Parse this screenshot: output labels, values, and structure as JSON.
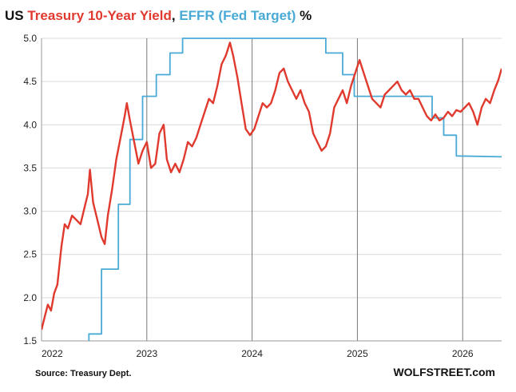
{
  "title": {
    "us": "US",
    "treasury": "Treasury 10-Year Yield",
    "sep": ", ",
    "effr": "EFFR (Fed Target)",
    "pct": "%"
  },
  "source": "Source: Treasury Dept.",
  "brand": "WOLFSTREET.com",
  "colors": {
    "treasury": "#e03a2f",
    "effr": "#4aaad6",
    "grid": "#d9d9d9",
    "year_line": "#7a7a7a"
  },
  "chart_data": {
    "type": "line",
    "ylim": [
      1.5,
      5.0
    ],
    "xlim": [
      2022.0,
      2026.37
    ],
    "y_ticks": [
      "1.5",
      "2.0",
      "2.5",
      "3.0",
      "3.5",
      "4.0",
      "4.5",
      "5.0"
    ],
    "x_ticks": [
      "2022",
      "2023",
      "2024",
      "2025",
      "2026"
    ],
    "grid": true,
    "series": [
      {
        "name": "Treasury 10-Year Yield",
        "color": "#e03a2f",
        "points": [
          [
            2022.0,
            1.63
          ],
          [
            2022.03,
            1.78
          ],
          [
            2022.06,
            1.92
          ],
          [
            2022.09,
            1.85
          ],
          [
            2022.12,
            2.05
          ],
          [
            2022.15,
            2.15
          ],
          [
            2022.19,
            2.6
          ],
          [
            2022.22,
            2.85
          ],
          [
            2022.25,
            2.8
          ],
          [
            2022.29,
            2.95
          ],
          [
            2022.33,
            2.9
          ],
          [
            2022.37,
            2.85
          ],
          [
            2022.41,
            3.05
          ],
          [
            2022.44,
            3.2
          ],
          [
            2022.46,
            3.48
          ],
          [
            2022.49,
            3.1
          ],
          [
            2022.53,
            2.9
          ],
          [
            2022.57,
            2.7
          ],
          [
            2022.6,
            2.62
          ],
          [
            2022.63,
            2.95
          ],
          [
            2022.67,
            3.25
          ],
          [
            2022.71,
            3.6
          ],
          [
            2022.75,
            3.85
          ],
          [
            2022.79,
            4.1
          ],
          [
            2022.81,
            4.25
          ],
          [
            2022.84,
            4.05
          ],
          [
            2022.88,
            3.8
          ],
          [
            2022.92,
            3.55
          ],
          [
            2022.96,
            3.7
          ],
          [
            2023.0,
            3.8
          ],
          [
            2023.04,
            3.5
          ],
          [
            2023.08,
            3.55
          ],
          [
            2023.12,
            3.9
          ],
          [
            2023.16,
            4.0
          ],
          [
            2023.19,
            3.6
          ],
          [
            2023.23,
            3.45
          ],
          [
            2023.27,
            3.55
          ],
          [
            2023.31,
            3.45
          ],
          [
            2023.35,
            3.6
          ],
          [
            2023.39,
            3.8
          ],
          [
            2023.43,
            3.75
          ],
          [
            2023.47,
            3.85
          ],
          [
            2023.51,
            4.0
          ],
          [
            2023.55,
            4.15
          ],
          [
            2023.59,
            4.3
          ],
          [
            2023.63,
            4.25
          ],
          [
            2023.67,
            4.45
          ],
          [
            2023.71,
            4.7
          ],
          [
            2023.75,
            4.8
          ],
          [
            2023.79,
            4.95
          ],
          [
            2023.82,
            4.8
          ],
          [
            2023.86,
            4.55
          ],
          [
            2023.9,
            4.25
          ],
          [
            2023.94,
            3.95
          ],
          [
            2023.98,
            3.88
          ],
          [
            2024.02,
            3.95
          ],
          [
            2024.06,
            4.1
          ],
          [
            2024.1,
            4.25
          ],
          [
            2024.14,
            4.2
          ],
          [
            2024.18,
            4.25
          ],
          [
            2024.22,
            4.4
          ],
          [
            2024.26,
            4.6
          ],
          [
            2024.3,
            4.65
          ],
          [
            2024.34,
            4.5
          ],
          [
            2024.38,
            4.4
          ],
          [
            2024.42,
            4.3
          ],
          [
            2024.46,
            4.4
          ],
          [
            2024.5,
            4.25
          ],
          [
            2024.54,
            4.15
          ],
          [
            2024.58,
            3.9
          ],
          [
            2024.62,
            3.8
          ],
          [
            2024.66,
            3.7
          ],
          [
            2024.7,
            3.75
          ],
          [
            2024.74,
            3.9
          ],
          [
            2024.78,
            4.2
          ],
          [
            2024.82,
            4.3
          ],
          [
            2024.86,
            4.4
          ],
          [
            2024.9,
            4.25
          ],
          [
            2024.94,
            4.45
          ],
          [
            2024.98,
            4.6
          ],
          [
            2025.02,
            4.75
          ],
          [
            2025.06,
            4.6
          ],
          [
            2025.1,
            4.45
          ],
          [
            2025.14,
            4.3
          ],
          [
            2025.18,
            4.25
          ],
          [
            2025.22,
            4.2
          ],
          [
            2025.26,
            4.35
          ],
          [
            2025.3,
            4.4
          ],
          [
            2025.34,
            4.45
          ],
          [
            2025.38,
            4.5
          ],
          [
            2025.42,
            4.4
          ],
          [
            2025.46,
            4.35
          ],
          [
            2025.5,
            4.4
          ],
          [
            2025.54,
            4.3
          ],
          [
            2025.58,
            4.3
          ],
          [
            2025.62,
            4.2
          ],
          [
            2025.66,
            4.1
          ],
          [
            2025.7,
            4.05
          ],
          [
            2025.74,
            4.12
          ],
          [
            2025.78,
            4.05
          ],
          [
            2025.82,
            4.08
          ],
          [
            2025.86,
            4.15
          ],
          [
            2025.9,
            4.1
          ],
          [
            2025.94,
            4.17
          ],
          [
            2025.98,
            4.15
          ],
          [
            2026.02,
            4.2
          ],
          [
            2026.06,
            4.25
          ],
          [
            2026.1,
            4.15
          ],
          [
            2026.14,
            4.0
          ],
          [
            2026.18,
            4.2
          ],
          [
            2026.22,
            4.3
          ],
          [
            2026.26,
            4.25
          ],
          [
            2026.3,
            4.4
          ],
          [
            2026.34,
            4.52
          ],
          [
            2026.37,
            4.65
          ]
        ]
      },
      {
        "name": "EFFR (Fed Target)",
        "color": "#4aaad6",
        "step": true,
        "points": [
          [
            2022.45,
            1.5
          ],
          [
            2022.45,
            1.58
          ],
          [
            2022.57,
            1.58
          ],
          [
            2022.57,
            2.33
          ],
          [
            2022.73,
            2.33
          ],
          [
            2022.73,
            3.08
          ],
          [
            2022.84,
            3.08
          ],
          [
            2022.84,
            3.83
          ],
          [
            2022.96,
            3.83
          ],
          [
            2022.96,
            4.33
          ],
          [
            2023.09,
            4.33
          ],
          [
            2023.09,
            4.58
          ],
          [
            2023.22,
            4.58
          ],
          [
            2023.22,
            4.83
          ],
          [
            2023.34,
            4.83
          ],
          [
            2023.34,
            5.0
          ],
          [
            2024.7,
            5.0
          ],
          [
            2024.7,
            4.83
          ],
          [
            2024.86,
            4.83
          ],
          [
            2024.86,
            4.58
          ],
          [
            2024.97,
            4.58
          ],
          [
            2024.97,
            4.33
          ],
          [
            2025.71,
            4.33
          ],
          [
            2025.71,
            4.08
          ],
          [
            2025.82,
            4.08
          ],
          [
            2025.82,
            3.88
          ],
          [
            2025.94,
            3.88
          ],
          [
            2025.94,
            3.64
          ],
          [
            2026.37,
            3.63
          ]
        ]
      }
    ]
  }
}
